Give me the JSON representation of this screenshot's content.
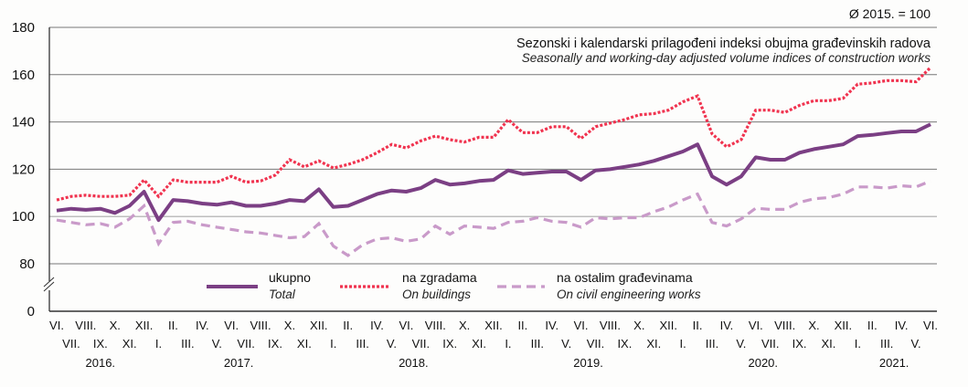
{
  "chart_data": {
    "type": "line",
    "title": "Sezonski i kalendarski prilagođeni indeksi obujma građevinskih radova",
    "subtitle": "Seasonally and working-day adjusted volume indices of construction works",
    "base_note": "Ø 2015. = 100",
    "xlabel": "",
    "ylabel": "",
    "ylim": [
      0,
      180
    ],
    "axis_break": [
      0,
      80
    ],
    "y_ticks": [
      0,
      80,
      100,
      120,
      140,
      160,
      180
    ],
    "grid": true,
    "legend_position": "bottom-center",
    "x_month_labels": [
      "VI.",
      "VII.",
      "VIII.",
      "IX.",
      "X.",
      "XI.",
      "XII.",
      "I.",
      "II.",
      "III.",
      "IV.",
      "V.",
      "VI.",
      "VII.",
      "VIII.",
      "IX.",
      "X.",
      "XI.",
      "XII.",
      "I.",
      "II.",
      "III.",
      "IV.",
      "V.",
      "VI.",
      "VII.",
      "VIII.",
      "IX.",
      "X.",
      "XI.",
      "XII.",
      "I.",
      "II.",
      "III.",
      "IV.",
      "V.",
      "VI.",
      "VII.",
      "VIII.",
      "IX.",
      "X.",
      "XI.",
      "XII.",
      "I.",
      "II.",
      "III.",
      "IV.",
      "V.",
      "VI.",
      "VII.",
      "VIII.",
      "IX.",
      "X.",
      "XI.",
      "XII.",
      "I.",
      "II.",
      "III.",
      "IV.",
      "V.",
      "VI."
    ],
    "x_year_labels": [
      {
        "label": "2016.",
        "index": 3
      },
      {
        "label": "2017.",
        "index": 12.5
      },
      {
        "label": "2018.",
        "index": 24.5
      },
      {
        "label": "2019.",
        "index": 36.5
      },
      {
        "label": "2020.",
        "index": 48.5
      },
      {
        "label": "2021.",
        "index": 57.5
      }
    ],
    "series": [
      {
        "name": "ukupno",
        "name_en": "Total",
        "color": "#7b3f84",
        "style": "solid",
        "values": [
          102.5,
          103.3,
          102.8,
          103.3,
          101.5,
          104.5,
          110.5,
          98.5,
          107,
          106.5,
          105.5,
          105,
          106,
          104.5,
          104.5,
          105.5,
          107,
          106.5,
          111.5,
          104,
          104.5,
          107,
          109.5,
          111,
          110.5,
          112,
          115.5,
          113.5,
          114,
          115,
          115.5,
          119.5,
          118,
          118.5,
          119,
          119,
          115.5,
          119.5,
          120,
          121,
          122,
          123.5,
          125.5,
          127.5,
          130.5,
          117,
          113.5,
          117,
          125,
          124,
          124,
          127,
          128.5,
          129.5,
          130.5,
          134,
          134.5,
          135.3,
          136,
          136,
          139
        ]
      },
      {
        "name": "na zgradama",
        "name_en": "On buildings",
        "color": "#f0334f",
        "style": "dotted",
        "values": [
          107,
          108.5,
          109,
          108.5,
          108.5,
          109,
          115.5,
          108.5,
          115.5,
          114.5,
          114.5,
          114.5,
          117,
          114.5,
          115,
          117.5,
          124,
          121,
          123.5,
          120.5,
          122,
          124,
          127,
          130.5,
          129,
          132,
          134,
          132.5,
          131.5,
          133.5,
          133.5,
          141,
          135.5,
          135.5,
          138,
          138,
          133,
          138,
          139.5,
          141,
          143,
          143.5,
          145,
          148.5,
          151,
          135,
          129.5,
          132.5,
          145,
          145,
          144,
          147,
          149,
          149,
          150,
          156,
          156.5,
          157.5,
          157.5,
          157,
          163
        ]
      },
      {
        "name": "na ostalim građevinama",
        "name_en": "On civil engineering works",
        "color": "#c99ac9",
        "style": "dashed",
        "values": [
          98.5,
          97.5,
          96.5,
          97,
          95.5,
          99,
          104.5,
          88.5,
          97.5,
          98,
          96.5,
          95.5,
          94.5,
          93.5,
          93,
          92,
          91,
          91.5,
          97,
          87.5,
          83.5,
          88,
          90.5,
          91,
          89.5,
          90.5,
          96,
          92.5,
          96,
          95.5,
          95,
          97.5,
          98,
          99.5,
          98,
          97.5,
          95.5,
          99.5,
          99,
          99.5,
          99.5,
          102,
          104,
          107,
          109.5,
          97.5,
          96,
          99,
          103.5,
          103,
          103,
          106,
          107.5,
          108,
          109.5,
          112.5,
          112.5,
          112,
          113,
          112.5,
          115
        ]
      }
    ]
  }
}
